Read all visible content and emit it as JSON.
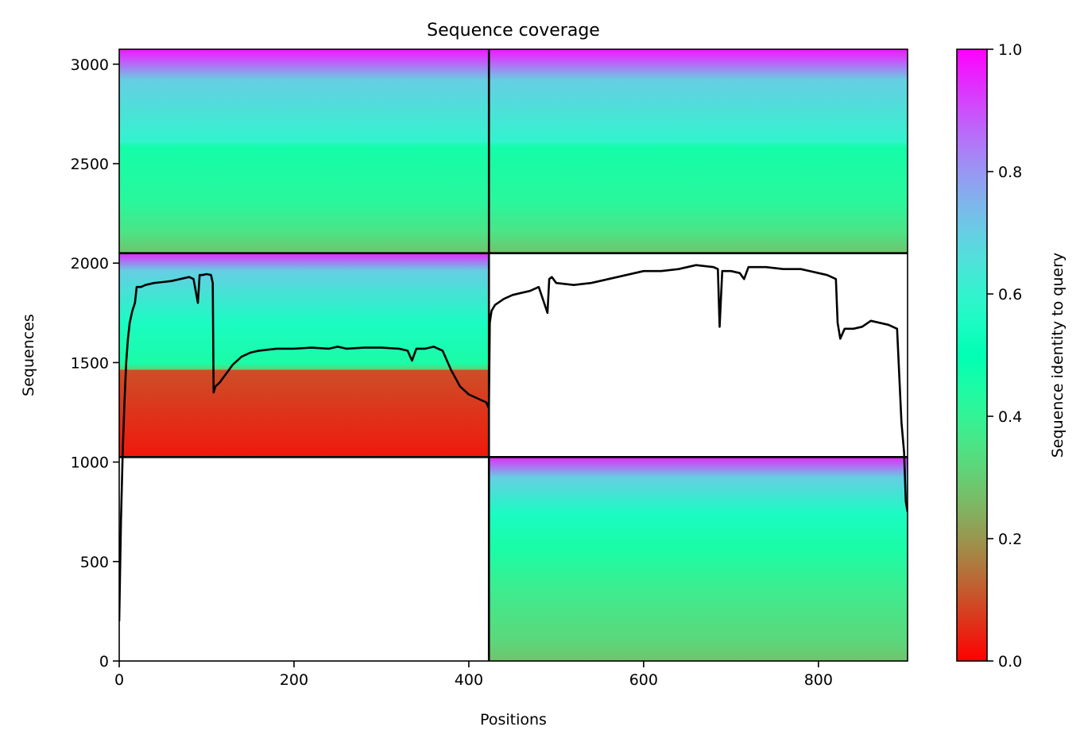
{
  "chart_data": {
    "type": "heatmap",
    "title": "Sequence coverage",
    "xlabel": "Positions",
    "ylabel": "Sequences",
    "xlim": [
      0,
      902
    ],
    "ylim": [
      0,
      3075
    ],
    "x_ticks": [
      0,
      200,
      400,
      600,
      800
    ],
    "y_ticks": [
      0,
      500,
      1000,
      1500,
      2000,
      2500,
      3000
    ],
    "grid": false,
    "colorscale": "rainbow_r",
    "colorbar": {
      "label": "Sequence identity to query",
      "range": [
        0,
        1
      ],
      "ticks": [
        0.0,
        0.2,
        0.4,
        0.6,
        0.8,
        1.0
      ],
      "tick_labels": [
        "0.0",
        "0.2",
        "0.4",
        "0.6",
        "0.8",
        "1.0"
      ]
    },
    "chain_boundaries": {
      "x": [
        423
      ],
      "y": [
        1025,
        2050
      ]
    },
    "blocks": [
      {
        "name": "bottom-right",
        "x_range": [
          423,
          902
        ],
        "y_range": [
          0,
          1025
        ],
        "identity_bottom": 0.28,
        "identity_top": 0.95,
        "breaks": [
          [
            0,
            0.28
          ],
          [
            0.1,
            0.32
          ],
          [
            0.35,
            0.38
          ],
          [
            0.55,
            0.45
          ],
          [
            0.72,
            0.55
          ],
          [
            0.9,
            0.7
          ],
          [
            1.0,
            0.95
          ]
        ]
      },
      {
        "name": "middle-left",
        "x_range": [
          0,
          423
        ],
        "y_range": [
          1025,
          1465
        ],
        "identity_bottom": 0.03,
        "identity_top": 0.1,
        "breaks": [
          [
            0,
            0.03
          ],
          [
            1.0,
            0.1
          ]
        ]
      },
      {
        "name": "middle-left-main",
        "x_range": [
          0,
          423
        ],
        "y_range": [
          1465,
          2050
        ],
        "identity_bottom": 0.3,
        "identity_top": 0.95,
        "breaks": [
          [
            0,
            0.3
          ],
          [
            0.05,
            0.45
          ],
          [
            0.4,
            0.55
          ],
          [
            0.85,
            0.7
          ],
          [
            1.0,
            0.95
          ]
        ]
      },
      {
        "name": "top",
        "x_range": [
          0,
          902
        ],
        "y_range": [
          2050,
          3075
        ],
        "identity_bottom": 0.28,
        "identity_top": 0.97,
        "breaks": [
          [
            0,
            0.28
          ],
          [
            0.1,
            0.35
          ],
          [
            0.25,
            0.42
          ],
          [
            0.52,
            0.46
          ],
          [
            0.55,
            0.6
          ],
          [
            0.85,
            0.7
          ],
          [
            0.95,
            0.9
          ],
          [
            1.0,
            0.97
          ]
        ]
      }
    ],
    "coverage_line": {
      "name": "coverage",
      "x": [
        0,
        2,
        4,
        6,
        8,
        10,
        12,
        15,
        18,
        20,
        25,
        30,
        40,
        50,
        60,
        70,
        80,
        85,
        90,
        92,
        95,
        100,
        105,
        107,
        108,
        110,
        115,
        120,
        130,
        140,
        150,
        160,
        180,
        200,
        220,
        240,
        250,
        260,
        280,
        300,
        320,
        330,
        335,
        340,
        350,
        360,
        370,
        380,
        390,
        400,
        410,
        415,
        420,
        423,
        424,
        426,
        430,
        440,
        450,
        460,
        470,
        480,
        490,
        492,
        495,
        500,
        520,
        540,
        560,
        580,
        600,
        620,
        640,
        660,
        680,
        685,
        687,
        690,
        700,
        710,
        715,
        720,
        740,
        760,
        780,
        800,
        810,
        820,
        822,
        825,
        830,
        840,
        850,
        860,
        870,
        880,
        890,
        895,
        898,
        900,
        902
      ],
      "y": [
        200,
        700,
        1050,
        1300,
        1500,
        1620,
        1700,
        1760,
        1800,
        1880,
        1880,
        1890,
        1900,
        1905,
        1910,
        1920,
        1930,
        1920,
        1800,
        1940,
        1940,
        1945,
        1940,
        1900,
        1350,
        1380,
        1400,
        1430,
        1490,
        1530,
        1550,
        1560,
        1570,
        1570,
        1575,
        1570,
        1580,
        1570,
        1575,
        1575,
        1570,
        1560,
        1510,
        1570,
        1570,
        1580,
        1560,
        1460,
        1380,
        1340,
        1320,
        1310,
        1300,
        1270,
        1700,
        1760,
        1790,
        1820,
        1840,
        1850,
        1860,
        1880,
        1750,
        1920,
        1930,
        1900,
        1890,
        1900,
        1920,
        1940,
        1960,
        1960,
        1970,
        1990,
        1980,
        1970,
        1680,
        1960,
        1960,
        1950,
        1920,
        1980,
        1980,
        1970,
        1970,
        1950,
        1940,
        1920,
        1700,
        1620,
        1670,
        1670,
        1680,
        1710,
        1700,
        1690,
        1670,
        1200,
        1050,
        800,
        750
      ]
    }
  }
}
